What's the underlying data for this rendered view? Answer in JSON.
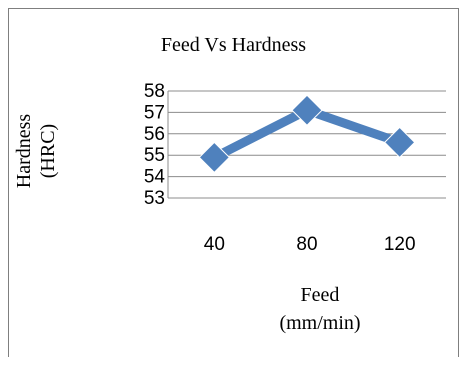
{
  "chart_data": {
    "type": "line",
    "title": "Feed Vs Hardness",
    "xlabel": [
      "Feed",
      "(mm/min)"
    ],
    "ylabel": [
      "Hardness",
      "(HRC)"
    ],
    "categories": [
      "40",
      "80",
      "120"
    ],
    "series": [
      {
        "values": [
          54.9,
          57.1,
          55.6
        ]
      }
    ],
    "ylim": [
      53,
      58
    ],
    "yticks": [
      "53",
      "54",
      "55",
      "56",
      "57",
      "58"
    ],
    "grid": true,
    "legend": "none",
    "colors": {
      "line": "#4f81bd",
      "marker": "#4f81bd",
      "grid": "#8c8c8c"
    }
  }
}
